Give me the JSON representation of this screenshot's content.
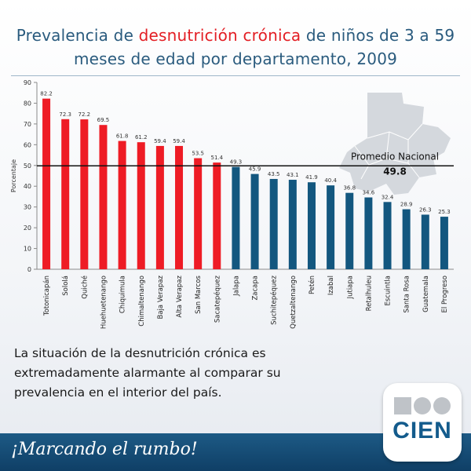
{
  "header": {
    "title_part1": "Prevalencia de ",
    "title_highlight": "desnutrición crónica",
    "title_part2": " de niños de 3 a 59",
    "title_line2": "meses de edad por departamento, 2009"
  },
  "chart_data": {
    "type": "bar",
    "title": "Prevalencia de desnutrición crónica de niños de 3 a 59 meses de edad por departamento, 2009",
    "ylabel": "Porcentaje",
    "xlabel": "",
    "ylim": [
      0,
      90
    ],
    "yticks": [
      0,
      10,
      20,
      30,
      40,
      50,
      60,
      70,
      80,
      90
    ],
    "categories": [
      "Totonicapán",
      "Sololá",
      "Quiché",
      "Huehuetenango",
      "Chiquimula",
      "Chimaltenango",
      "Baja Verapaz",
      "Alta Verapaz",
      "San Marcos",
      "Sacatepéquez",
      "Jalapa",
      "Zacapa",
      "Suchitepéquez",
      "Quetzaltenango",
      "Petén",
      "Izabal",
      "Jutiapa",
      "Retalhuleu",
      "Escuintla",
      "Santa Rosa",
      "Guatemala",
      "El Progreso"
    ],
    "values": [
      82.2,
      72.3,
      72.2,
      69.5,
      61.8,
      61.2,
      59.4,
      59.4,
      53.5,
      51.4,
      49.3,
      45.9,
      43.5,
      43.1,
      41.9,
      40.4,
      36.8,
      34.6,
      32.4,
      28.9,
      26.3,
      25.3
    ],
    "value_labels": [
      "82.2",
      "72.3",
      "72.2",
      "69.5",
      "61.8",
      "61.2",
      "59.4",
      "59.4",
      "53.5",
      "51.4",
      "49.3",
      "45.9",
      "43.5",
      "43.1",
      "41.9",
      "40.4",
      "36.8",
      "34.6",
      "32.4",
      "28.9",
      "26.3",
      "25.3"
    ],
    "reference_line": {
      "label": "Promedio Nacional",
      "value": 49.8,
      "value_label": "49.8"
    },
    "colors": {
      "above": "#ee1c25",
      "below": "#13577f",
      "map": "#cfd3d8"
    }
  },
  "caption": "La situación de la desnutrición crónica es extremadamente alarmante al comparar su prevalencia en el  interior del país.",
  "footer": {
    "tagline": "¡Marcando el rumbo!"
  },
  "logo": {
    "text": "CIEN"
  }
}
